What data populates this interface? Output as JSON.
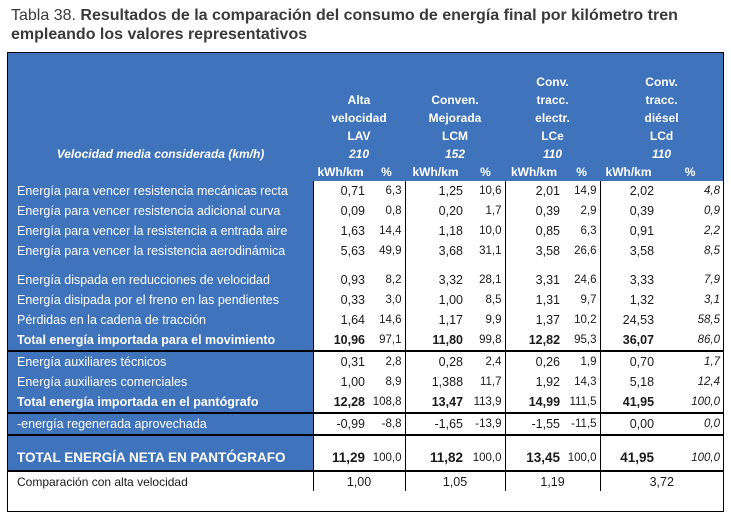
{
  "caption": {
    "prefix": "Tabla 38.",
    "title": "Resultados de la comparación del consumo de energía final por kilómetro tren empleando los valores representativos"
  },
  "header": {
    "columns": [
      {
        "lines": [
          "Alta",
          "velocidad",
          "LAV"
        ],
        "speed": "210"
      },
      {
        "lines": [
          "Conven.",
          "Mejorada",
          "LCM"
        ],
        "speed": "152"
      },
      {
        "lines": [
          "Conv.",
          "tracc.",
          "electr.",
          "LCe"
        ],
        "speed": "110"
      },
      {
        "lines": [
          "Conv.",
          "tracc.",
          "diésel",
          "LCd"
        ],
        "speed": "110"
      }
    ],
    "speed_label": "Velocidad media considerada (km/h)",
    "unit": "kWh/km",
    "pct": "%"
  },
  "rows": [
    {
      "label": "Energía para vencer resistencia mecánicas recta",
      "v": [
        "0,71",
        "6,3",
        "1,25",
        "10,6",
        "2,01",
        "14,9",
        "2,02",
        "4,8"
      ]
    },
    {
      "label": "Energía para vencer resistencia adicional curva",
      "v": [
        "0,09",
        "0,8",
        "0,20",
        "1,7",
        "0,39",
        "2,9",
        "0,39",
        "0,9"
      ]
    },
    {
      "label": "Energía para vencer la resistencia a entrada aire",
      "v": [
        "1,63",
        "14,4",
        "1,18",
        "10,0",
        "0,85",
        "6,3",
        "0,91",
        "2,2"
      ]
    },
    {
      "label": "Energía para vencer la resistencia aerodinámica",
      "v": [
        "5,63",
        "49,9",
        "3,68",
        "31,1",
        "3,58",
        "26,6",
        "3,58",
        "8,5"
      ]
    },
    {
      "label": "Energía dispada en reducciones de velocidad",
      "v": [
        "0,93",
        "8,2",
        "3,32",
        "28,1",
        "3,31",
        "24,6",
        "3,33",
        "7,9"
      ]
    },
    {
      "label": "Energía disipada por el freno en las pendientes",
      "v": [
        "0,33",
        "3,0",
        "1,00",
        "8,5",
        "1,31",
        "9,7",
        "1,32",
        "3,1"
      ]
    },
    {
      "label": "Pérdidas en la cadena de tracción",
      "v": [
        "1,64",
        "14,6",
        "1,17",
        "9,9",
        "1,37",
        "10,2",
        "24,53",
        "58,5"
      ]
    },
    {
      "label": "Total energía importada para el movimiento",
      "v": [
        "10,96",
        "97,1",
        "11,80",
        "99,8",
        "12,82",
        "95,3",
        "36,07",
        "86,0"
      ]
    },
    {
      "label": "Energía auxiliares técnicos",
      "v": [
        "0,31",
        "2,8",
        "0,28",
        "2,4",
        "0,26",
        "1,9",
        "0,70",
        "1,7"
      ]
    },
    {
      "label": "Energía auxiliares comerciales",
      "v": [
        "1,00",
        "8,9",
        "1,388",
        "11,7",
        "1,92",
        "14,3",
        "5,18",
        "12,4"
      ]
    },
    {
      "label": "Total energía importada en el pantógrafo",
      "v": [
        "12,28",
        "108,8",
        "13,47",
        "113,9",
        "14,99",
        "111,5",
        "41,95",
        "100,0"
      ]
    },
    {
      "label": "-energía regenerada aprovechada",
      "v": [
        "-0,99",
        "-8,8",
        "-1,65",
        "-13,9",
        "-1,55",
        "-11,5",
        "0,00",
        "0,0"
      ]
    },
    {
      "label": "TOTAL ENERGÍA NETA EN PANTÓGRAFO",
      "v": [
        "11,29",
        "100,0",
        "11,82",
        "100,0",
        "13,45",
        "100,0",
        "41,95",
        "100,0"
      ]
    }
  ],
  "comparison": {
    "label": "Comparación con alta velocidad",
    "v": [
      "1,00",
      "1,05",
      "1,19",
      "3,72"
    ]
  }
}
